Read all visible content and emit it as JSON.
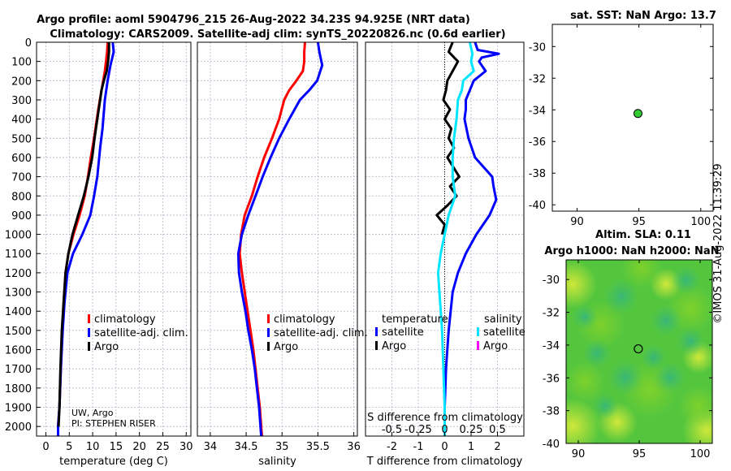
{
  "title": {
    "line1": "Argo profile: aoml 5904796_215 26-Aug-2022 34.23S 94.925E (NRT data)",
    "line2": "Climatology: CARS2009. Satellite-adj clim: synTS_20220826.nc (0.6d earlier)"
  },
  "colors": {
    "climatology": "#ff0000",
    "satellite": "#0000ff",
    "argo": "#000000",
    "sat_salinity": "#00e5ff",
    "magenta": "#ff00ff",
    "marker": "#33cc33"
  },
  "depth_ticks": [
    0,
    100,
    200,
    300,
    400,
    500,
    600,
    700,
    800,
    900,
    1000,
    1100,
    1200,
    1300,
    1400,
    1500,
    1600,
    1700,
    1800,
    1900,
    2000
  ],
  "chart_data": [
    {
      "type": "line",
      "name": "temperature-profile",
      "xlabel": "temperature (deg C)",
      "ylabel": "",
      "xlim": [
        -2,
        31
      ],
      "ylim": [
        2050,
        0
      ],
      "xticks": [
        0,
        5,
        10,
        15,
        20,
        25,
        30
      ],
      "legend": {
        "placement": "bottom-right",
        "items": [
          "climatology",
          "satellite-adj. clim.",
          "Argo"
        ]
      },
      "annotation": [
        "UW, Argo",
        "PI: STEPHEN RISER"
      ],
      "series": [
        {
          "name": "climatology",
          "color": "#ff0000",
          "points": [
            [
              13.2,
              0
            ],
            [
              13.1,
              50
            ],
            [
              12.6,
              150
            ],
            [
              11.9,
              250
            ],
            [
              11.2,
              350
            ],
            [
              10.3,
              500
            ],
            [
              9.6,
              600
            ],
            [
              9.0,
              700
            ],
            [
              8.3,
              800
            ],
            [
              7.2,
              900
            ],
            [
              5.9,
              1000
            ],
            [
              4.8,
              1100
            ],
            [
              4.2,
              1200
            ],
            [
              3.8,
              1350
            ],
            [
              3.5,
              1500
            ],
            [
              3.2,
              1700
            ],
            [
              2.9,
              1900
            ],
            [
              2.6,
              2000
            ],
            [
              2.6,
              2050
            ]
          ]
        },
        {
          "name": "satellite-adj. clim.",
          "color": "#0000ff",
          "points": [
            [
              14.3,
              0
            ],
            [
              14.5,
              50
            ],
            [
              13.8,
              120
            ],
            [
              13.2,
              200
            ],
            [
              12.6,
              300
            ],
            [
              12.1,
              450
            ],
            [
              11.6,
              550
            ],
            [
              11.0,
              700
            ],
            [
              10.3,
              800
            ],
            [
              9.5,
              900
            ],
            [
              7.8,
              1000
            ],
            [
              5.8,
              1100
            ],
            [
              4.6,
              1200
            ],
            [
              4.0,
              1350
            ],
            [
              3.6,
              1500
            ],
            [
              3.2,
              1700
            ],
            [
              2.9,
              1900
            ],
            [
              2.6,
              2000
            ],
            [
              2.6,
              2050
            ]
          ]
        },
        {
          "name": "Argo",
          "color": "#000000",
          "points": [
            [
              13.5,
              0
            ],
            [
              13.5,
              50
            ],
            [
              13.3,
              100
            ],
            [
              13.0,
              150
            ],
            [
              12.4,
              200
            ],
            [
              11.9,
              250
            ],
            [
              11.6,
              300
            ],
            [
              11.0,
              400
            ],
            [
              10.4,
              500
            ],
            [
              9.9,
              600
            ],
            [
              9.1,
              700
            ],
            [
              8.1,
              800
            ],
            [
              6.9,
              900
            ],
            [
              5.7,
              1000
            ],
            [
              4.8,
              1100
            ],
            [
              4.2,
              1200
            ],
            [
              3.8,
              1350
            ],
            [
              3.4,
              1500
            ],
            [
              3.1,
              1700
            ],
            [
              2.9,
              1900
            ],
            [
              2.7,
              2000
            ]
          ]
        }
      ]
    },
    {
      "type": "line",
      "name": "salinity-profile",
      "xlabel": "salinity",
      "xlim": [
        33.82,
        36.05
      ],
      "ylim": [
        2050,
        0
      ],
      "xticks": [
        34,
        34.5,
        35,
        35.5,
        36
      ],
      "legend": {
        "placement": "bottom-right",
        "items": [
          "climatology",
          "satellite-adj. clim.",
          "Argo"
        ]
      },
      "series": [
        {
          "name": "climatology",
          "color": "#ff0000",
          "points": [
            [
              35.32,
              0
            ],
            [
              35.31,
              50
            ],
            [
              35.31,
              100
            ],
            [
              35.29,
              150
            ],
            [
              35.2,
              200
            ],
            [
              35.1,
              250
            ],
            [
              35.03,
              300
            ],
            [
              34.96,
              400
            ],
            [
              34.86,
              500
            ],
            [
              34.75,
              600
            ],
            [
              34.66,
              700
            ],
            [
              34.58,
              800
            ],
            [
              34.48,
              900
            ],
            [
              34.43,
              1000
            ],
            [
              34.41,
              1100
            ],
            [
              34.44,
              1200
            ],
            [
              34.48,
              1300
            ],
            [
              34.52,
              1400
            ],
            [
              34.56,
              1500
            ],
            [
              34.6,
              1600
            ],
            [
              34.63,
              1700
            ],
            [
              34.66,
              1800
            ],
            [
              34.69,
              1900
            ],
            [
              34.71,
              2000
            ],
            [
              34.72,
              2050
            ]
          ]
        },
        {
          "name": "satellite-adj. clim.",
          "color": "#0000ff",
          "points": [
            [
              35.5,
              0
            ],
            [
              35.52,
              50
            ],
            [
              35.56,
              120
            ],
            [
              35.49,
              200
            ],
            [
              35.38,
              250
            ],
            [
              35.25,
              300
            ],
            [
              35.1,
              400
            ],
            [
              34.96,
              500
            ],
            [
              34.84,
              600
            ],
            [
              34.73,
              700
            ],
            [
              34.63,
              800
            ],
            [
              34.53,
              900
            ],
            [
              34.44,
              1000
            ],
            [
              34.39,
              1100
            ],
            [
              34.4,
              1200
            ],
            [
              34.44,
              1300
            ],
            [
              34.49,
              1400
            ],
            [
              34.53,
              1500
            ],
            [
              34.58,
              1600
            ],
            [
              34.62,
              1700
            ],
            [
              34.65,
              1800
            ],
            [
              34.68,
              1900
            ],
            [
              34.7,
              2000
            ],
            [
              34.71,
              2050
            ]
          ]
        }
      ]
    },
    {
      "type": "line",
      "name": "difference-profile",
      "xlabel": "T difference from climatology",
      "xlabel_top": "S difference from climatology",
      "xlim": [
        -3,
        3
      ],
      "ylim": [
        2050,
        0
      ],
      "xticks": [
        -2,
        -1,
        0,
        1,
        2
      ],
      "xticks_top": [
        "-0.5",
        "-0.25",
        "0",
        "0.25",
        "0.5"
      ],
      "legend": {
        "placement": "bottom",
        "temperature_header": "temperature",
        "salinity_header": "salinity",
        "temperature_items": [
          "satellite",
          "Argo"
        ],
        "salinity_items": [
          "satellite",
          "Argo"
        ]
      },
      "series": [
        {
          "name": "T satellite",
          "color": "#0000ff",
          "points": [
            [
              1.15,
              0
            ],
            [
              1.25,
              40
            ],
            [
              2.05,
              60
            ],
            [
              1.4,
              80
            ],
            [
              1.3,
              100
            ],
            [
              1.55,
              150
            ],
            [
              1.1,
              200
            ],
            [
              0.8,
              300
            ],
            [
              0.8,
              350
            ],
            [
              0.75,
              400
            ],
            [
              0.9,
              500
            ],
            [
              1.15,
              600
            ],
            [
              1.8,
              700
            ],
            [
              1.85,
              750
            ],
            [
              1.95,
              820
            ],
            [
              1.7,
              900
            ],
            [
              1.2,
              1000
            ],
            [
              0.8,
              1100
            ],
            [
              0.5,
              1200
            ],
            [
              0.3,
              1300
            ],
            [
              0.15,
              1500
            ],
            [
              0.05,
              1700
            ],
            [
              0.0,
              1900
            ],
            [
              0.0,
              2050
            ]
          ]
        },
        {
          "name": "T Argo",
          "color": "#000000",
          "points": [
            [
              0.3,
              0
            ],
            [
              0.15,
              50
            ],
            [
              0.5,
              100
            ],
            [
              0.3,
              150
            ],
            [
              0.1,
              200
            ],
            [
              0.05,
              250
            ],
            [
              -0.05,
              300
            ],
            [
              0.2,
              350
            ],
            [
              0.0,
              400
            ],
            [
              0.25,
              450
            ],
            [
              0.15,
              500
            ],
            [
              0.35,
              550
            ],
            [
              0.1,
              600
            ],
            [
              0.55,
              700
            ],
            [
              0.2,
              750
            ],
            [
              0.45,
              800
            ],
            [
              0.1,
              850
            ],
            [
              -0.3,
              900
            ],
            [
              0.0,
              950
            ],
            [
              -0.1,
              1000
            ]
          ]
        },
        {
          "name": "S satellite",
          "color": "#00e5ff",
          "points": [
            [
              0.95,
              0
            ],
            [
              1.05,
              60
            ],
            [
              1.0,
              100
            ],
            [
              1.1,
              150
            ],
            [
              0.7,
              200
            ],
            [
              0.65,
              250
            ],
            [
              0.5,
              300
            ],
            [
              0.45,
              400
            ],
            [
              0.35,
              500
            ],
            [
              0.3,
              600
            ],
            [
              0.3,
              700
            ],
            [
              0.4,
              800
            ],
            [
              0.15,
              900
            ],
            [
              0.0,
              1000
            ],
            [
              -0.15,
              1100
            ],
            [
              -0.25,
              1200
            ],
            [
              -0.2,
              1300
            ],
            [
              -0.1,
              1500
            ],
            [
              -0.05,
              1700
            ],
            [
              0.0,
              1900
            ],
            [
              0.0,
              2050
            ]
          ]
        }
      ]
    },
    {
      "type": "scatter",
      "name": "sst-map",
      "title": "sat. SST: NaN Argo: 13.7",
      "xlim": [
        88,
        101
      ],
      "ylim": [
        -40.4,
        -28.6
      ],
      "xticks": [
        90,
        95,
        100
      ],
      "yticks": [
        -30,
        -32,
        -34,
        -36,
        -38,
        -40
      ],
      "x": [
        94.925
      ],
      "y": [
        -34.23
      ]
    },
    {
      "type": "heatmap",
      "name": "sla-map",
      "title1": "Altim. SLA: 0.11",
      "title2": "Argo h1000: NaN h2000: NaN",
      "xlim": [
        89,
        101
      ],
      "ylim": [
        -40,
        -28.8
      ],
      "xticks": [
        90,
        95,
        100
      ],
      "yticks": [
        -30,
        -32,
        -34,
        -36,
        -38,
        -40
      ],
      "x": [
        94.925
      ],
      "y": [
        -34.23
      ]
    }
  ],
  "timestamp": "©IMOS 31-Aug-2022 11:39:29"
}
